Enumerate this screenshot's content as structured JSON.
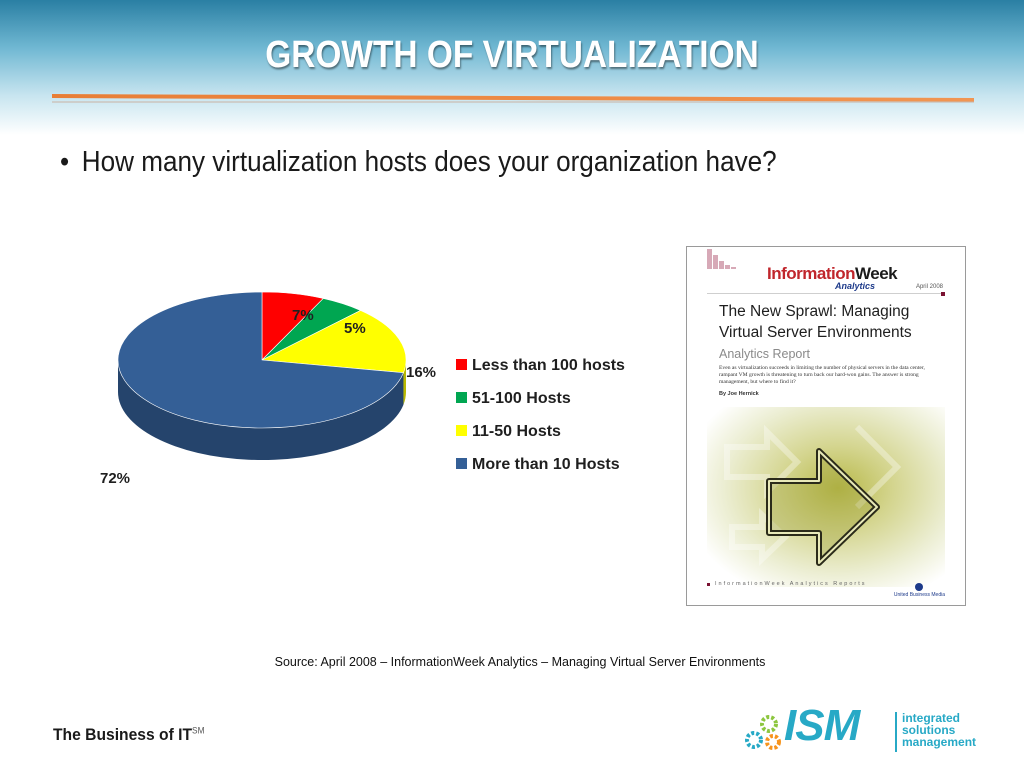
{
  "slide": {
    "title": "GROWTH OF VIRTUALIZATION",
    "bullet": "How many virtualization hosts does your organization have?"
  },
  "chart_data": {
    "type": "pie",
    "categories": [
      "Less than 100 hosts",
      "51-100 Hosts",
      "11-50 Hosts",
      "More than 10 Hosts"
    ],
    "values": [
      7,
      5,
      16,
      72
    ],
    "value_labels": [
      "7%",
      "5%",
      "16%",
      "72%"
    ],
    "colors": [
      "#ff0000",
      "#00a651",
      "#ffff00",
      "#345f96"
    ],
    "style": "3d-pie",
    "legend_position": "right"
  },
  "report_cover": {
    "brand_info": "Information",
    "brand_week": "Week",
    "brand_sub": "Analytics",
    "date": "April 2008",
    "title": "The New Sprawl: Managing Virtual Server Environments",
    "subtitle": "Analytics Report",
    "blurb": "Even as virtualization succeeds in limiting the number of physical servers in the data center, rampant VM growth is threatening to turn back our hard-won gains. The answer is strong management, but where to find it?",
    "author": "By Joe Hernick",
    "footer": "InformationWeek Analytics Reports",
    "publisher": "United Business Media"
  },
  "source": "Source:  April 2008 – InformationWeek Analytics – Managing Virtual Server Environments",
  "footer": {
    "text": "The Business of IT",
    "mark": "SM"
  },
  "logo": {
    "name": "ISM",
    "tag_lines": [
      "integrated",
      "solutions",
      "management"
    ],
    "colors": [
      "#27a9c6",
      "#8dc63f",
      "#f7941d"
    ]
  }
}
